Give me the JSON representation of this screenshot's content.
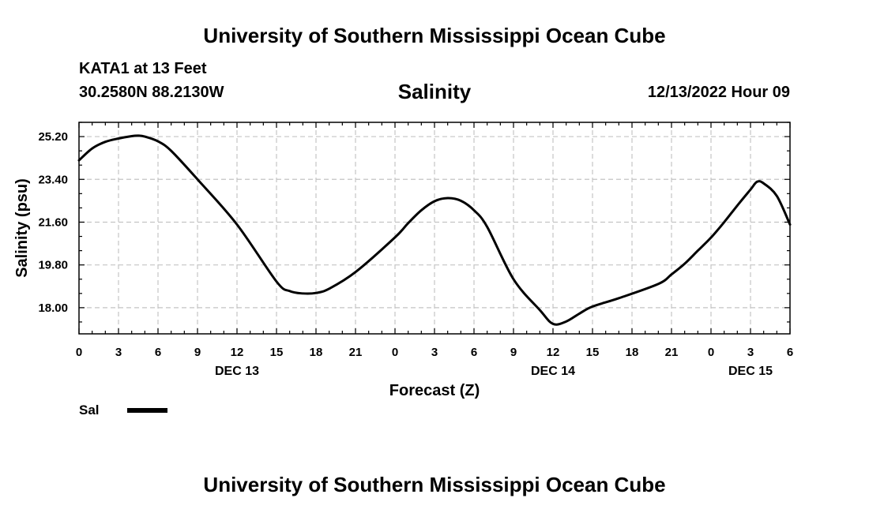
{
  "header": {
    "title": "University of Southern Mississippi Ocean Cube",
    "station": "KATA1 at 13 Feet",
    "coords": "30.2580N  88.2130W",
    "chart_title": "Salinity",
    "datetime": "12/13/2022 Hour 09"
  },
  "footer": {
    "title": "University of Southern Mississippi Ocean Cube"
  },
  "legend": {
    "label": "Sal"
  },
  "chart_data": {
    "type": "line",
    "title": "Salinity",
    "xlabel": "Forecast (Z)",
    "ylabel": "Salinity (psu)",
    "xlim": [
      0,
      54
    ],
    "ylim": [
      16.9,
      25.8
    ],
    "x_tick_values": [
      0,
      3,
      6,
      9,
      12,
      15,
      18,
      21,
      24,
      27,
      30,
      33,
      36,
      39,
      42,
      45,
      48,
      51,
      54
    ],
    "x_tick_labels": [
      "0",
      "3",
      "6",
      "9",
      "12",
      "15",
      "18",
      "21",
      "0",
      "3",
      "6",
      "9",
      "12",
      "15",
      "18",
      "21",
      "0",
      "3",
      "6"
    ],
    "y_tick_values": [
      18.0,
      19.8,
      21.6,
      23.4,
      25.2
    ],
    "y_tick_labels": [
      "18.00",
      "19.80",
      "21.60",
      "23.40",
      "25.20"
    ],
    "date_labels": [
      {
        "x": 12,
        "label": "DEC 13"
      },
      {
        "x": 36,
        "label": "DEC 14"
      },
      {
        "x": 51,
        "label": "DEC 15"
      }
    ],
    "grid": true,
    "series": [
      {
        "name": "Sal",
        "color": "#000000",
        "x": [
          0,
          1,
          2,
          3,
          4,
          4.5,
          5,
          6,
          7,
          9,
          12,
          15,
          16,
          17,
          18,
          19,
          21,
          24,
          25,
          26,
          27,
          28,
          29,
          30,
          31,
          33,
          35,
          36,
          37,
          38,
          39,
          41,
          44,
          45,
          46,
          47,
          48,
          49,
          50,
          51,
          51.5,
          52,
          53,
          54
        ],
        "values": [
          24.2,
          24.7,
          24.98,
          25.12,
          25.22,
          25.24,
          25.2,
          25.0,
          24.6,
          23.4,
          21.5,
          19.1,
          18.7,
          18.6,
          18.62,
          18.8,
          19.5,
          20.96,
          21.56,
          22.1,
          22.48,
          22.61,
          22.5,
          22.1,
          21.4,
          19.2,
          17.9,
          17.32,
          17.42,
          17.75,
          18.05,
          18.4,
          19.0,
          19.4,
          19.85,
          20.4,
          20.95,
          21.6,
          22.3,
          22.97,
          23.3,
          23.23,
          22.7,
          21.5
        ]
      }
    ]
  }
}
